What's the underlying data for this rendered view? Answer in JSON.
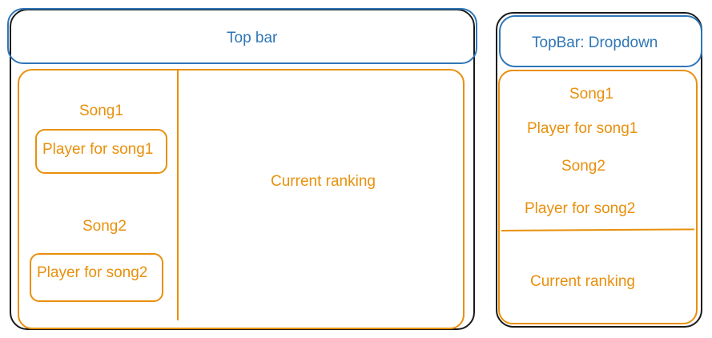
{
  "desktop": {
    "top_bar": "Top bar",
    "song1": "Song1",
    "player_song1": "Player for song1",
    "song2": "Song2",
    "player_song2": "Player for song2",
    "current_ranking": "Current ranking"
  },
  "mobile": {
    "top_bar": "TopBar: Dropdown",
    "song1": "Song1",
    "player_song1": "Player for song1",
    "song2": "Song2",
    "player_song2": "Player for song2",
    "current_ranking": "Current ranking"
  },
  "colors": {
    "orange": "#e8900c",
    "blue": "#2f76b7",
    "frame": "#1a1a1a"
  }
}
